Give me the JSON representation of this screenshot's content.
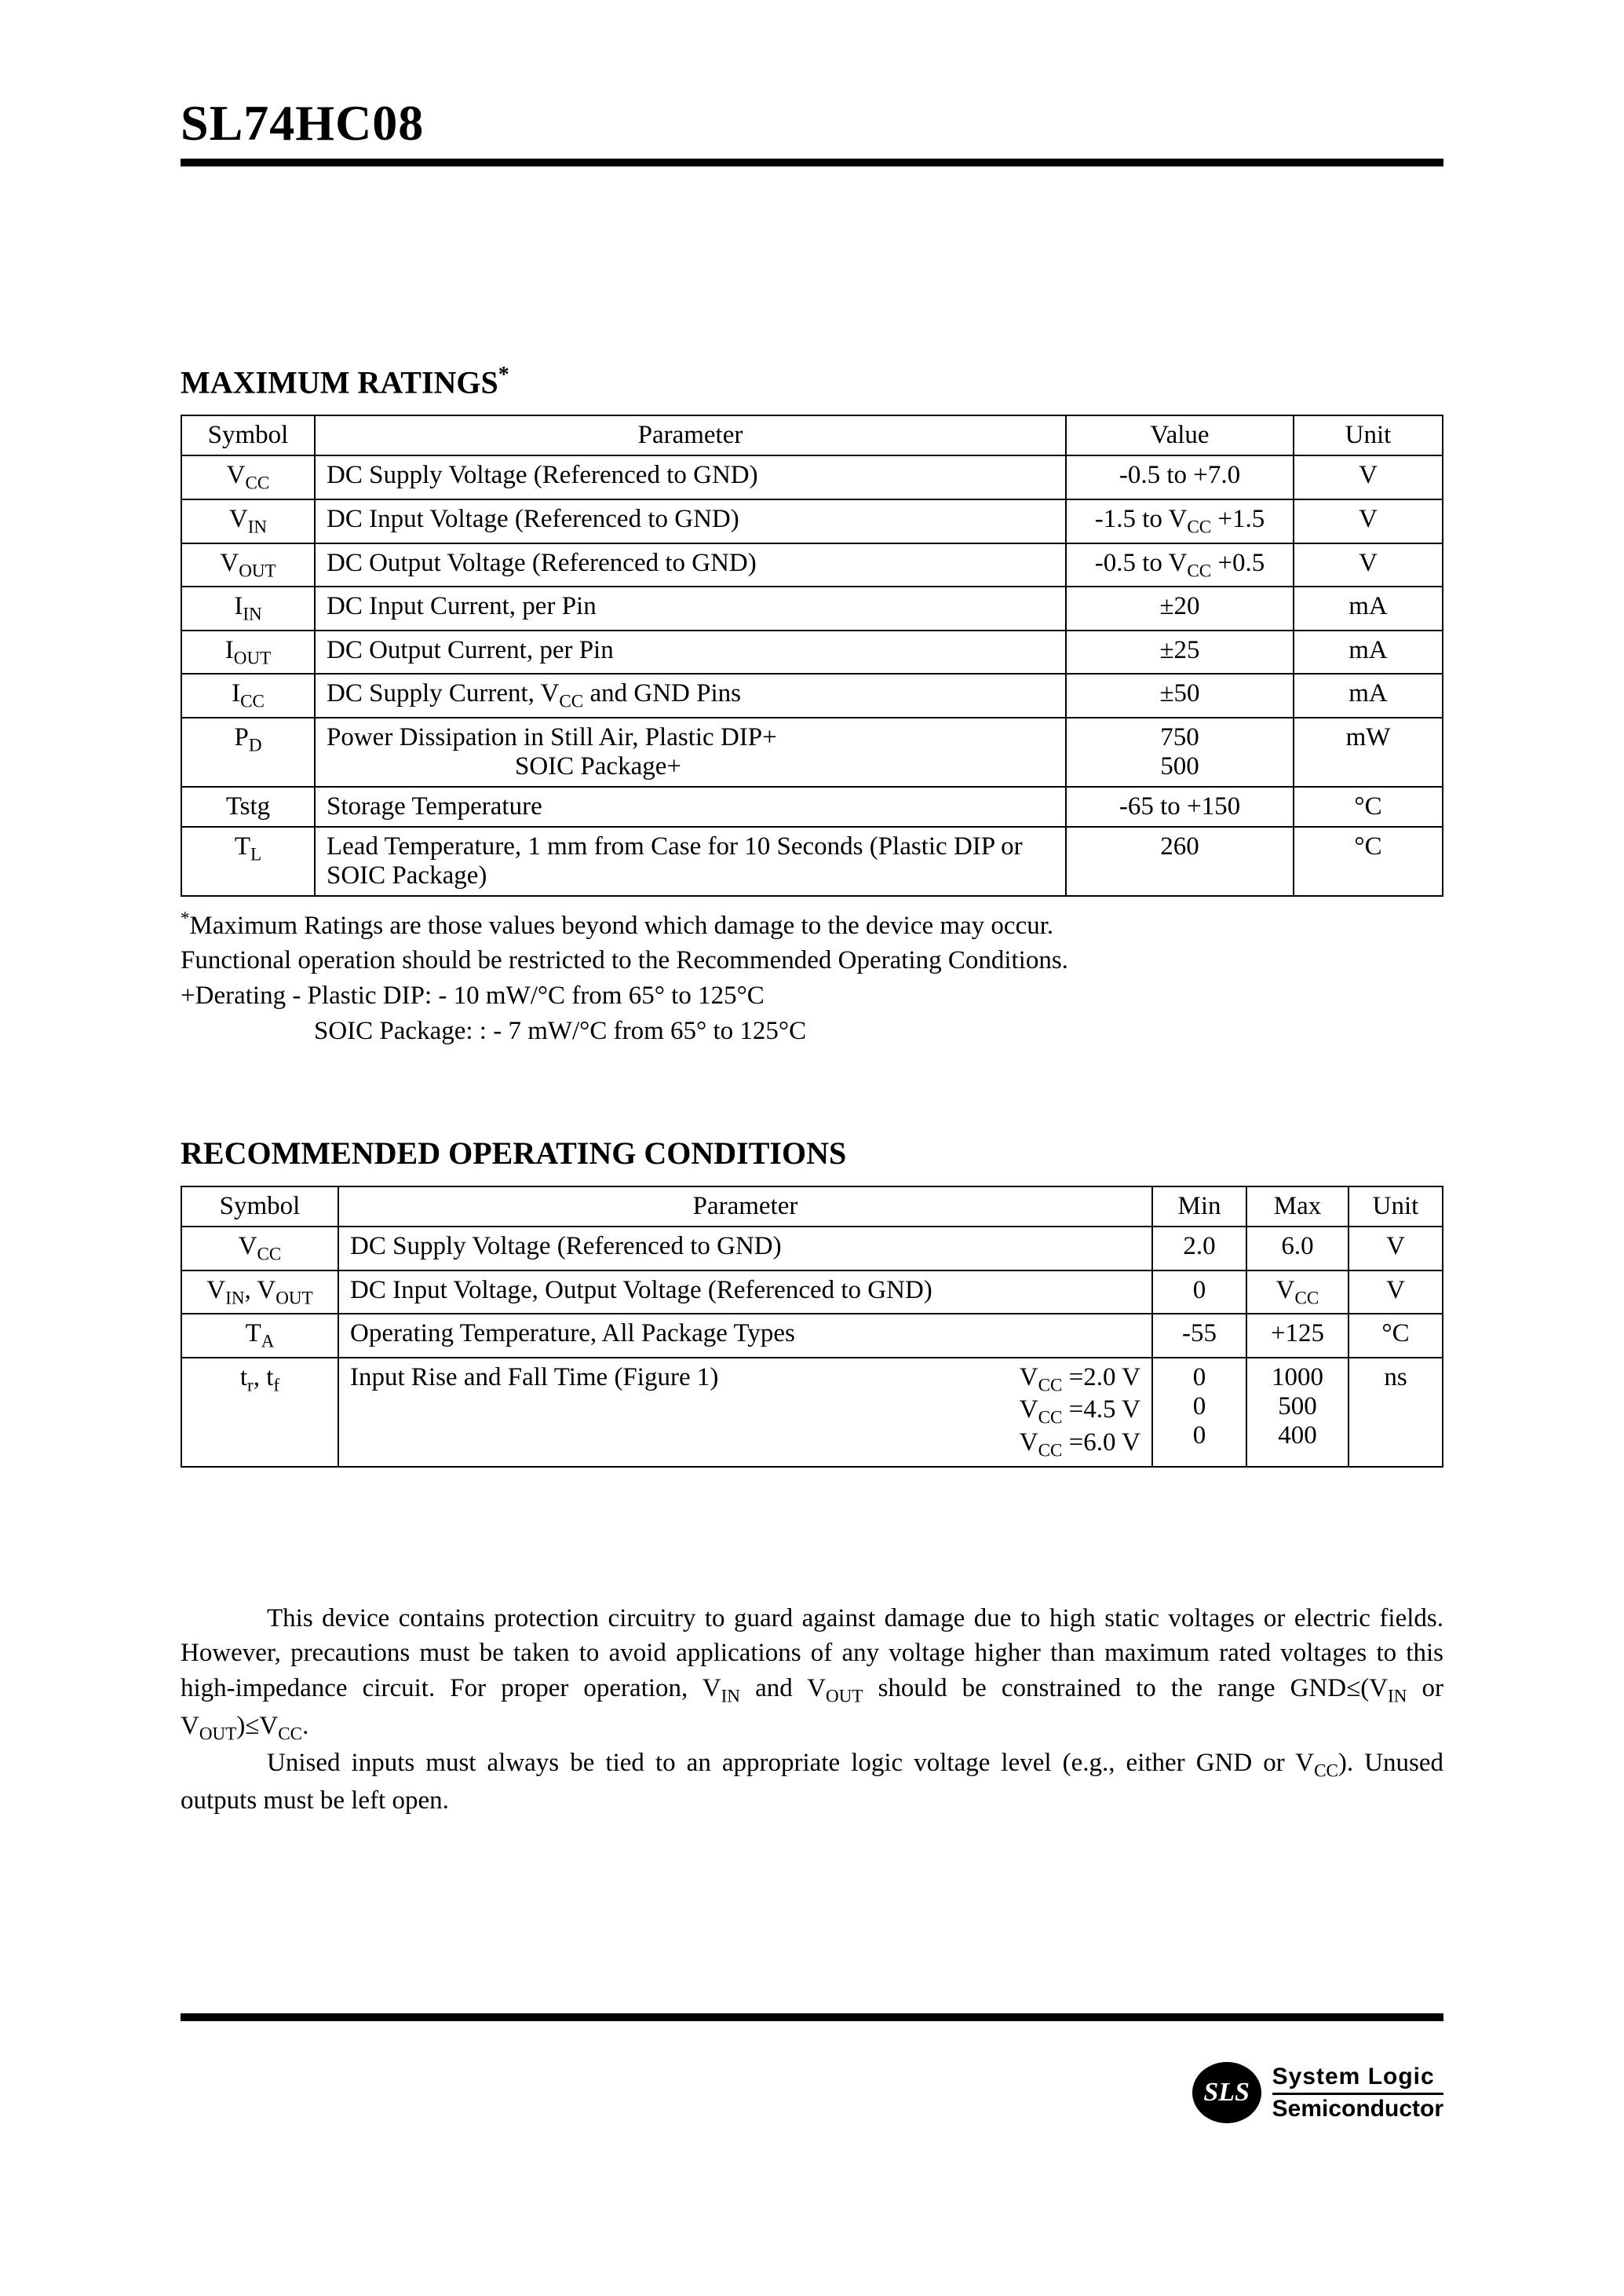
{
  "header": {
    "part_number": "SL74HC08"
  },
  "section1": {
    "title": "MAXIMUM RATINGS",
    "star": "*",
    "table": {
      "headers": {
        "symbol": "Symbol",
        "parameter": "Parameter",
        "value": "Value",
        "unit": "Unit"
      },
      "rows": [
        {
          "sym_base": "V",
          "sym_sub": "CC",
          "param": "DC Supply Voltage (Referenced to GND)",
          "value": "-0.5 to +7.0",
          "unit": "V"
        },
        {
          "sym_base": "V",
          "sym_sub": "IN",
          "param": "DC Input Voltage (Referenced to GND)",
          "value_html": "-1.5 to V<span class=\"sub\">CC</span> +1.5",
          "unit": "V"
        },
        {
          "sym_base": "V",
          "sym_sub": "OUT",
          "param": "DC Output Voltage (Referenced to GND)",
          "value_html": "-0.5 to V<span class=\"sub\">CC</span> +0.5",
          "unit": "V"
        },
        {
          "sym_base": "I",
          "sym_sub": "IN",
          "param": "DC Input Current, per Pin",
          "value": "±20",
          "unit": "mA"
        },
        {
          "sym_base": "I",
          "sym_sub": "OUT",
          "param": "DC Output Current, per Pin",
          "value": "±25",
          "unit": "mA"
        },
        {
          "sym_base": "I",
          "sym_sub": "CC",
          "param_html": "DC Supply Current, V<span class=\"sub\">CC</span> and GND Pins",
          "value": "±50",
          "unit": "mA"
        },
        {
          "sym_base": "P",
          "sym_sub": "D",
          "param_html": "Power Dissipation in Still Air, Plastic  DIP+<br><span style=\"display:inline-block;width:240px\"></span>SOIC Package+",
          "value_html": "750<br>500",
          "unit": "mW"
        },
        {
          "sym_plain": "Tstg",
          "param": "Storage Temperature",
          "value": "-65 to +150",
          "unit": "°C"
        },
        {
          "sym_base": "T",
          "sym_sub": "L",
          "param": "Lead Temperature, 1 mm from Case for 10 Seconds (Plastic DIP or SOIC Package)",
          "value": "260",
          "unit": "°C"
        }
      ]
    },
    "footnotes": {
      "l1_html": "<span class=\"sup-star\">*</span>Maximum Ratings are those values beyond which damage to the device may occur.",
      "l2": "Functional operation should be restricted to the Recommended Operating Conditions.",
      "l3": "+Derating - Plastic DIP: - 10 mW/°C from 65° to 125°C",
      "l4": "SOIC Package: : - 7 mW/°C from 65° to 125°C"
    }
  },
  "section2": {
    "title": "RECOMMENDED OPERATING CONDITIONS",
    "table": {
      "headers": {
        "symbol": "Symbol",
        "parameter": "Parameter",
        "min": "Min",
        "max": "Max",
        "unit": "Unit"
      },
      "rows": [
        {
          "sym_html": "V<span class=\"sub\">CC</span>",
          "param": "DC Supply Voltage (Referenced to GND)",
          "min": "2.0",
          "max": "6.0",
          "unit": "V"
        },
        {
          "sym_html": "V<span class=\"sub\">IN</span>, V<span class=\"sub\">OUT</span>",
          "param": "DC Input Voltage, Output Voltage (Referenced to GND)",
          "min": "0",
          "max_html": "V<span class=\"sub\">CC</span>",
          "unit": "V"
        },
        {
          "sym_html": "T<span class=\"sub\">A</span>",
          "param": "Operating Temperature, All Package Types",
          "min": "-55",
          "max": "+125",
          "unit": "°C"
        },
        {
          "sym_html": "t<span class=\"sub\">r</span>, t<span class=\"sub\">f</span>",
          "param_left": "Input Rise and Fall Time   (Figure 1)",
          "param_right_html": "V<span class=\"sub\">CC</span> =2.0 V<br>V<span class=\"sub\">CC</span> =4.5 V<br>V<span class=\"sub\">CC</span> =6.0 V",
          "min_stack": [
            "0",
            "0",
            "0"
          ],
          "max_stack": [
            "1000",
            "500",
            "400"
          ],
          "unit": "ns"
        }
      ]
    }
  },
  "body": {
    "p1_html": "This device contains protection circuitry to guard against damage due to high static voltages or electric fields. However, precautions must be taken to avoid applications of any voltage higher than maximum rated voltages to this high-impedance circuit. For proper operation, V<span class=\"sub\">IN</span> and V<span class=\"sub\">OUT</span> should be constrained to the range GND≤(V<span class=\"sub\">IN</span> or V<span class=\"sub\">OUT</span>)≤V<span class=\"sub\">CC</span>.",
    "p2_html": "Unised inputs must always be tied to an appropriate logic voltage level (e.g., either GND or V<span class=\"sub\">CC</span>). Unused outputs must be left open."
  },
  "footer": {
    "sls": "SLS",
    "line1": "System Logic",
    "line2": "Semiconductor"
  }
}
